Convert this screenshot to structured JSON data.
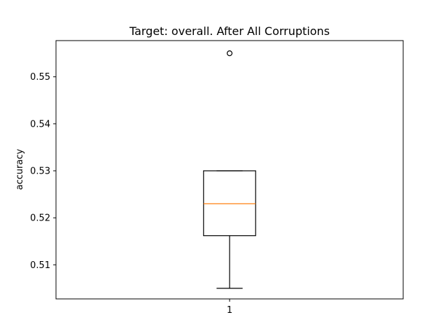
{
  "chart_data": {
    "type": "box",
    "title": "Target: overall. After All Corruptions",
    "xlabel": "",
    "ylabel": "accuracy",
    "categories": [
      "1"
    ],
    "series": [
      {
        "whisker_low": 0.505,
        "q1": 0.5162,
        "median": 0.523,
        "q3": 0.53,
        "whisker_high": 0.53,
        "outliers": [
          0.555
        ]
      }
    ],
    "ylim": [
      0.50275,
      0.5577
    ],
    "yticks": [
      0.51,
      0.52,
      0.53,
      0.54,
      0.55
    ],
    "ytick_labels": [
      "0.51",
      "0.52",
      "0.53",
      "0.54",
      "0.55"
    ],
    "grid": false,
    "colors": {
      "median": "#ff7f0e",
      "box": "#000000",
      "outlier": "#000000"
    }
  }
}
